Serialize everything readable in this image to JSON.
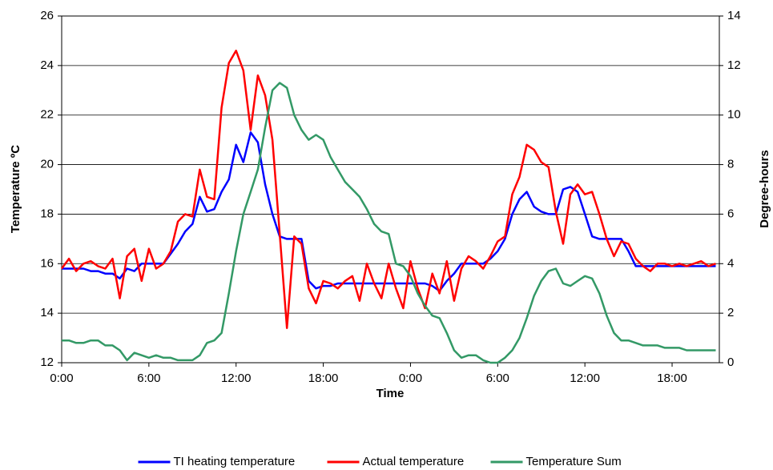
{
  "chart_data": {
    "type": "line",
    "y_label": "Temperature ºC",
    "y2_label": "Degree-hours",
    "x_label": "Time",
    "x": [
      0,
      0.5,
      1,
      1.5,
      2,
      2.5,
      3,
      3.5,
      4,
      4.5,
      5,
      5.5,
      6,
      6.5,
      7,
      7.5,
      8,
      8.5,
      9,
      9.5,
      10,
      10.5,
      11,
      11.5,
      12,
      12.5,
      13,
      13.5,
      14,
      14.5,
      15,
      15.5,
      16,
      16.5,
      17,
      17.5,
      18,
      18.5,
      19,
      19.5,
      20,
      20.5,
      21,
      21.5,
      22,
      22.5,
      23,
      23.5,
      24,
      24.5,
      25,
      25.5,
      26,
      26.5,
      27,
      27.5,
      28,
      28.5,
      29,
      29.5,
      30,
      30.5,
      31,
      31.5,
      32,
      32.5,
      33,
      33.5,
      34,
      34.5,
      35,
      35.5,
      36,
      36.5,
      37,
      37.5,
      38,
      38.5,
      39,
      39.5,
      40,
      40.5,
      41,
      41.5,
      42,
      42.5,
      43,
      43.5,
      44,
      44.5,
      45
    ],
    "xlim": [
      0,
      45.25
    ],
    "xticks": [
      {
        "value": 0,
        "label": "0:00"
      },
      {
        "value": 6,
        "label": "6:00"
      },
      {
        "value": 12,
        "label": "12:00"
      },
      {
        "value": 18,
        "label": "18:00"
      },
      {
        "value": 24,
        "label": "0:00"
      },
      {
        "value": 30,
        "label": "6:00"
      },
      {
        "value": 36,
        "label": "12:00"
      },
      {
        "value": 42,
        "label": "18:00"
      }
    ],
    "ylim": [
      12,
      26
    ],
    "yticks": [
      12,
      14,
      16,
      18,
      20,
      22,
      24,
      26
    ],
    "y2lim": [
      0,
      14
    ],
    "y2ticks": [
      0,
      2,
      4,
      6,
      8,
      10,
      12,
      14
    ],
    "grid": true,
    "legend": "bottom",
    "series": [
      {
        "name": "TI heating temperature",
        "color": "#0000ff",
        "values": [
          15.8,
          15.8,
          15.8,
          15.8,
          15.7,
          15.7,
          15.6,
          15.6,
          15.4,
          15.8,
          15.7,
          16,
          16,
          16,
          16,
          16.4,
          16.8,
          17.3,
          17.6,
          18.7,
          18.1,
          18.2,
          18.9,
          19.4,
          20.8,
          20.1,
          21.3,
          20.9,
          19.2,
          18,
          17.1,
          17,
          17,
          17,
          15.3,
          15,
          15.1,
          15.1,
          15.2,
          15.2,
          15.2,
          15.2,
          15.2,
          15.2,
          15.2,
          15.2,
          15.2,
          15.2,
          15.2,
          15.2,
          15.2,
          15.1,
          14.9,
          15.3,
          15.6,
          16,
          16,
          16,
          16,
          16.2,
          16.5,
          17,
          18,
          18.6,
          18.9,
          18.3,
          18.1,
          18,
          18,
          19,
          19.1,
          18.9,
          18,
          17.1,
          17,
          17,
          17,
          17,
          16.5,
          15.9,
          15.9,
          15.9,
          15.9,
          15.9,
          15.9,
          15.9,
          15.9,
          15.9,
          15.9,
          15.9,
          15.9
        ]
      },
      {
        "name": "Actual temperature",
        "color": "#ff0000",
        "values": [
          15.8,
          16.2,
          15.7,
          16,
          16.1,
          15.9,
          15.8,
          16.2,
          14.6,
          16.3,
          16.6,
          15.3,
          16.6,
          15.8,
          16,
          16.5,
          17.7,
          18,
          17.9,
          19.8,
          18.7,
          18.6,
          22.3,
          24.1,
          24.6,
          23.8,
          21.4,
          23.6,
          22.8,
          21,
          17.2,
          13.4,
          17.1,
          16.8,
          15,
          14.4,
          15.3,
          15.2,
          15,
          15.3,
          15.5,
          14.5,
          16,
          15.2,
          14.6,
          16,
          15,
          14.2,
          16.1,
          15,
          14.2,
          15.6,
          14.8,
          16.1,
          14.5,
          15.8,
          16.3,
          16.1,
          15.8,
          16.3,
          16.9,
          17.1,
          18.8,
          19.5,
          20.8,
          20.6,
          20.1,
          19.9,
          18.1,
          16.8,
          18.8,
          19.2,
          18.8,
          18.9,
          18,
          17,
          16.3,
          16.9,
          16.8,
          16.2,
          15.9,
          15.7,
          16,
          16,
          15.9,
          16,
          15.9,
          16,
          16.1,
          15.9,
          16
        ]
      },
      {
        "name": "Temperature Sum",
        "color": "#339966",
        "axis": "y2",
        "values": [
          0.9,
          0.9,
          0.8,
          0.8,
          0.9,
          0.9,
          0.7,
          0.7,
          0.5,
          0.1,
          0.4,
          0.3,
          0.2,
          0.3,
          0.2,
          0.2,
          0.1,
          0.1,
          0.1,
          0.3,
          0.8,
          0.9,
          1.2,
          2.8,
          4.5,
          6,
          6.9,
          7.8,
          9.5,
          11,
          11.3,
          11.1,
          10,
          9.4,
          9,
          9.2,
          9,
          8.3,
          7.8,
          7.3,
          7,
          6.7,
          6.2,
          5.6,
          5.3,
          5.2,
          4,
          3.9,
          3.5,
          2.8,
          2.3,
          1.9,
          1.8,
          1.2,
          0.5,
          0.2,
          0.3,
          0.3,
          0.1,
          0,
          0,
          0.2,
          0.5,
          1,
          1.8,
          2.7,
          3.3,
          3.7,
          3.8,
          3.2,
          3.1,
          3.3,
          3.5,
          3.4,
          2.8,
          1.9,
          1.2,
          0.9,
          0.9,
          0.8,
          0.7,
          0.7,
          0.7,
          0.6,
          0.6,
          0.6,
          0.5,
          0.5,
          0.5,
          0.5,
          0.5
        ]
      }
    ]
  }
}
